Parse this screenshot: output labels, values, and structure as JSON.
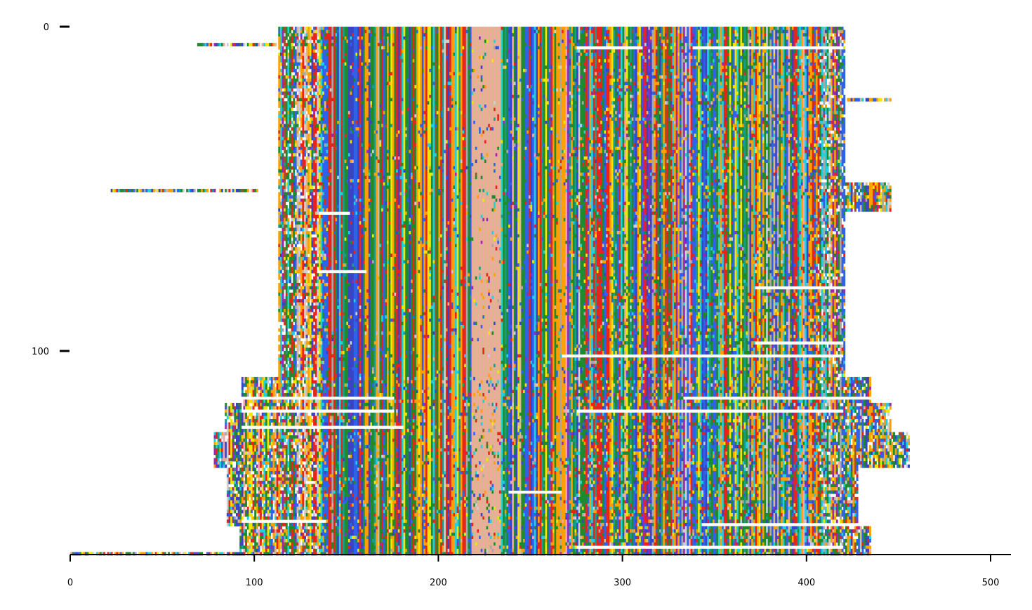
{
  "chart_data": {
    "type": "heatmap",
    "title": "",
    "xlabel": "",
    "ylabel": "",
    "xlim": [
      0,
      512
    ],
    "ylim": [
      0,
      162
    ],
    "y_inverted": true,
    "x_ticks": [
      0,
      100,
      200,
      300,
      400,
      500
    ],
    "x_tick_labels": [
      "0",
      "100",
      "200",
      "300",
      "400",
      "500"
    ],
    "y_ticks": [
      0,
      100
    ],
    "y_tick_labels": [
      "0",
      "100"
    ],
    "n_rows": 162,
    "n_columns": 512,
    "grid": false,
    "legend": "none",
    "palette": {
      "green": "#1f8a2e",
      "orange": "#ff9f00",
      "red": "#e8241a",
      "blue": "#2f62ea",
      "indigo": "#3a44c2",
      "cyan": "#1ed0e0",
      "yellow": "#f2e600",
      "purple": "#9c27b0",
      "teal": "#1a9c8c",
      "pink": "#f4a6a0",
      "tan": "#d8b98a",
      "light-gray": "#d0d0d0",
      "gray": "#a8a8a8",
      "lavender": "#c8c8f0",
      "brown": "#a0522d"
    },
    "row_spans": [
      {
        "rows": [
          0,
          10
        ],
        "start": 113,
        "end": 421
      },
      {
        "rows": [
          5,
          5
        ],
        "start": 69,
        "end": 113
      },
      {
        "rows": [
          22,
          22
        ],
        "start": 421,
        "end": 446
      },
      {
        "rows": [
          50,
          50
        ],
        "start": 22,
        "end": 102
      },
      {
        "rows": [
          48,
          56
        ],
        "start": 421,
        "end": 446
      },
      {
        "rows": [
          11,
          107
        ],
        "start": 113,
        "end": 421
      },
      {
        "rows": [
          108,
          115
        ],
        "start": 93,
        "end": 435
      },
      {
        "rows": [
          116,
          124
        ],
        "start": 84,
        "end": 446
      },
      {
        "rows": [
          125,
          135
        ],
        "start": 78,
        "end": 456
      },
      {
        "rows": [
          136,
          153
        ],
        "start": 85,
        "end": 428
      },
      {
        "rows": [
          154,
          162
        ],
        "start": 92,
        "end": 435
      },
      {
        "rows": [
          162,
          162
        ],
        "start": 0,
        "end": 92
      }
    ],
    "gaps": [
      {
        "row": 6,
        "start": 275,
        "end": 311
      },
      {
        "row": 6,
        "start": 338,
        "end": 420
      },
      {
        "row": 57,
        "start": 135,
        "end": 152
      },
      {
        "row": 75,
        "start": 135,
        "end": 161
      },
      {
        "row": 80,
        "start": 372,
        "end": 420
      },
      {
        "row": 97,
        "start": 372,
        "end": 420
      },
      {
        "row": 101,
        "start": 267,
        "end": 420
      },
      {
        "row": 114,
        "start": 93,
        "end": 176
      },
      {
        "row": 114,
        "start": 333,
        "end": 440
      },
      {
        "row": 118,
        "start": 93,
        "end": 176
      },
      {
        "row": 118,
        "start": 275,
        "end": 420
      },
      {
        "row": 123,
        "start": 93,
        "end": 181
      },
      {
        "row": 143,
        "start": 238,
        "end": 267
      },
      {
        "row": 152,
        "start": 93,
        "end": 139
      },
      {
        "row": 153,
        "start": 343,
        "end": 430
      },
      {
        "row": 160,
        "start": 275,
        "end": 420
      }
    ]
  }
}
